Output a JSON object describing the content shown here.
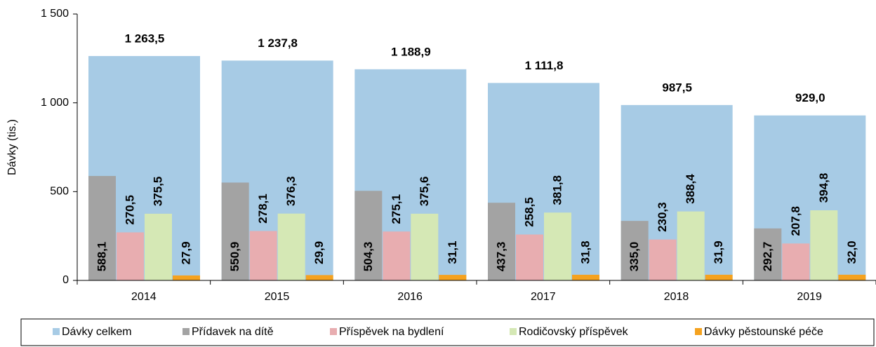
{
  "chart_data": {
    "type": "bar",
    "y_label": "Dávky (tis.)",
    "categories": [
      "2014",
      "2015",
      "2016",
      "2017",
      "2018",
      "2019"
    ],
    "series": [
      {
        "name": "Dávky celkem",
        "color": "#a7cbe5",
        "values": [
          1263.5,
          1237.8,
          1188.9,
          1111.8,
          987.5,
          929.0
        ],
        "value_labels": [
          "1 263,5",
          "1 237,8",
          "1 188,9",
          "1 111,8",
          "987,5",
          "929,0"
        ]
      },
      {
        "name": "Přídavek na dítě",
        "color": "#a3a3a3",
        "values": [
          588.1,
          550.9,
          504.3,
          437.3,
          335.0,
          292.7
        ],
        "value_labels": [
          "588,1",
          "550,9",
          "504,3",
          "437,3",
          "335,0",
          "292,7"
        ]
      },
      {
        "name": "Příspěvek na bydlení",
        "color": "#e8adb0",
        "values": [
          270.5,
          278.1,
          275.1,
          258.5,
          230.3,
          207.8
        ],
        "value_labels": [
          "270,5",
          "278,1",
          "275,1",
          "258,5",
          "230,3",
          "207,8"
        ]
      },
      {
        "name": "Rodičovský příspěvek",
        "color": "#d5e8b5",
        "values": [
          375.5,
          376.3,
          375.6,
          381.8,
          388.4,
          394.8
        ],
        "value_labels": [
          "375,5",
          "376,3",
          "375,6",
          "381,8",
          "388,4",
          "394,8"
        ]
      },
      {
        "name": "Dávky pěstounské péče",
        "color": "#f5a21f",
        "values": [
          27.9,
          29.9,
          31.1,
          31.8,
          31.9,
          32.0
        ],
        "value_labels": [
          "27,9",
          "29,9",
          "31,1",
          "31,8",
          "31,9",
          "32,0"
        ]
      }
    ],
    "ylim": [
      0,
      1500
    ],
    "yticks": [
      0,
      500,
      {
        "value": 1000,
        "label": "1 000"
      },
      {
        "value": 1500,
        "label": "1 500"
      }
    ],
    "legend": "bottom"
  }
}
